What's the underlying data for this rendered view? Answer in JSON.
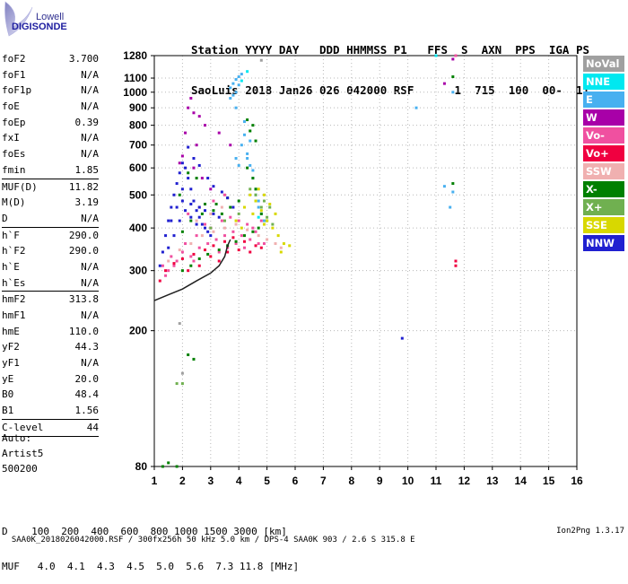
{
  "logo": {
    "line1": "Lowell",
    "line2": "DIGISONDE"
  },
  "header": {
    "labels": "Station YYYY DAY   DDD HHMMSS P1   FFS  S  AXN  PPS  IGA PS",
    "values": "SaoLuis 2018 Jan26 026 042000 RSF      1  715  100  00-  11"
  },
  "params": [
    {
      "name": "foF2",
      "value": "3.700"
    },
    {
      "name": "foF1",
      "value": "N/A"
    },
    {
      "name": "foF1p",
      "value": "N/A"
    },
    {
      "name": "foE",
      "value": "N/A"
    },
    {
      "name": "foEp",
      "value": "0.39"
    },
    {
      "name": "fxI",
      "value": "N/A"
    },
    {
      "name": "foEs",
      "value": "N/A"
    },
    {
      "name": "fmin",
      "value": "1.85"
    },
    {
      "sep": true
    },
    {
      "name": "MUF(D)",
      "value": "11.82"
    },
    {
      "name": "M(D)",
      "value": "3.19"
    },
    {
      "name": "D",
      "value": "N/A"
    },
    {
      "sep": true
    },
    {
      "name": "h`F",
      "value": "290.0"
    },
    {
      "name": "h`F2",
      "value": "290.0"
    },
    {
      "name": "h`E",
      "value": "N/A"
    },
    {
      "name": "h`Es",
      "value": "N/A"
    },
    {
      "sep": true
    },
    {
      "name": "hmF2",
      "value": "313.8"
    },
    {
      "name": "hmF1",
      "value": "N/A"
    },
    {
      "name": "hmE",
      "value": "110.0"
    },
    {
      "name": "yF2",
      "value": "44.3"
    },
    {
      "name": "yF1",
      "value": "N/A"
    },
    {
      "name": "yE",
      "value": "20.0"
    },
    {
      "name": "B0",
      "value": "48.4"
    },
    {
      "name": "B1",
      "value": "1.56"
    },
    {
      "sep": true
    },
    {
      "name": "C-level",
      "value": "44"
    },
    {
      "sep": true
    }
  ],
  "auto": {
    "line1": "Auto:",
    "line2": "Artist5",
    "line3": "500200"
  },
  "legend": [
    {
      "label": "NoVal",
      "color": "#a0a0a0"
    },
    {
      "label": "NNE",
      "color": "#00e8f0"
    },
    {
      "label": "E",
      "color": "#48b0f0"
    },
    {
      "label": "W",
      "color": "#a800a8"
    },
    {
      "label": "Vo-",
      "color": "#f050a0"
    },
    {
      "label": "Vo+",
      "color": "#f00040"
    },
    {
      "label": "SSW",
      "color": "#f0b0b0"
    },
    {
      "label": "X-",
      "color": "#008000"
    },
    {
      "label": "X+",
      "color": "#70b050"
    },
    {
      "label": "SSE",
      "color": "#d8d800"
    },
    {
      "label": "NNW",
      "color": "#2020d0"
    }
  ],
  "muf_table": {
    "d_row": "D    100  200  400  600  800 1000 1500 3000 [km]",
    "muf_row": "MUF   4.0  4.1  4.3  4.5  5.0  5.6  7.3 11.8 [MHz]"
  },
  "footer": {
    "text": "SAA0K_2018026042000.RSF / 300fx256h 50 kHz 5.0 km / DPS-4 SAA0K 903 / 2.6 S 315.8 E",
    "version": "Ion2Png 1.3.17"
  },
  "chart_data": {
    "type": "scatter",
    "xlabel": "",
    "ylabel": "",
    "x_ticks": [
      1,
      2,
      3,
      4,
      5,
      6,
      7,
      8,
      9,
      10,
      11,
      12,
      13,
      14,
      15,
      16
    ],
    "y_ticks": [
      80,
      200,
      300,
      400,
      500,
      600,
      700,
      800,
      900,
      1000,
      1100,
      1280
    ],
    "xlim": [
      1,
      16
    ],
    "ylim": [
      80,
      1280
    ],
    "y_scale": "log",
    "grid": true,
    "x_unit": "MHz",
    "y_unit": "km",
    "series": [
      {
        "color": "#a0a0a0",
        "points": [
          [
            1.9,
            210
          ],
          [
            2.0,
            150
          ],
          [
            4.8,
            1240
          ]
        ]
      },
      {
        "color": "#00e8f0",
        "points": [
          [
            4.1,
            1080
          ],
          [
            4.3,
            1150
          ],
          [
            4.6,
            480
          ],
          [
            4.7,
            430
          ],
          [
            11.0,
            1280
          ]
        ]
      },
      {
        "color": "#48b0f0",
        "points": [
          [
            3.7,
            1030
          ],
          [
            3.8,
            1060
          ],
          [
            3.9,
            1090
          ],
          [
            4.0,
            1110
          ],
          [
            4.1,
            1130
          ],
          [
            3.9,
            1000
          ],
          [
            3.8,
            980
          ],
          [
            4.0,
            1050
          ],
          [
            4.2,
            820
          ],
          [
            4.3,
            660
          ],
          [
            4.4,
            610
          ],
          [
            4.5,
            560
          ],
          [
            4.6,
            520
          ],
          [
            4.7,
            480
          ],
          [
            4.4,
            720
          ],
          [
            4.2,
            750
          ],
          [
            3.9,
            900
          ],
          [
            3.7,
            960
          ],
          [
            4.7,
            460
          ],
          [
            4.6,
            500
          ],
          [
            4.8,
            440
          ],
          [
            4.9,
            420
          ],
          [
            11.6,
            1000
          ],
          [
            11.6,
            510
          ],
          [
            11.5,
            460
          ],
          [
            11.3,
            530
          ],
          [
            10.3,
            900
          ],
          [
            4.1,
            700
          ],
          [
            4.3,
            640
          ],
          [
            4.5,
            590
          ],
          [
            4.0,
            610
          ],
          [
            3.9,
            640
          ]
        ]
      },
      {
        "color": "#a800a8",
        "points": [
          [
            2.2,
            900
          ],
          [
            2.4,
            870
          ],
          [
            2.3,
            960
          ],
          [
            2.6,
            850
          ],
          [
            2.8,
            800
          ],
          [
            3.3,
            760
          ],
          [
            3.7,
            700
          ],
          [
            2.1,
            760
          ],
          [
            2.5,
            700
          ],
          [
            2.0,
            650
          ],
          [
            1.9,
            620
          ],
          [
            11.3,
            1060
          ],
          [
            11.6,
            1250
          ],
          [
            2.4,
            600
          ],
          [
            2.7,
            560
          ],
          [
            3.0,
            520
          ]
        ]
      },
      {
        "color": "#f050a0",
        "points": [
          [
            1.3,
            310
          ],
          [
            1.5,
            300
          ],
          [
            1.8,
            320
          ],
          [
            2.0,
            340
          ],
          [
            2.3,
            330
          ],
          [
            2.6,
            350
          ],
          [
            2.9,
            360
          ],
          [
            3.2,
            370
          ],
          [
            3.5,
            380
          ],
          [
            3.8,
            390
          ],
          [
            4.1,
            380
          ],
          [
            4.4,
            370
          ],
          [
            4.7,
            360
          ],
          [
            2.1,
            360
          ],
          [
            2.5,
            380
          ],
          [
            3.0,
            400
          ],
          [
            3.4,
            420
          ],
          [
            3.7,
            430
          ],
          [
            4.0,
            420
          ],
          [
            4.3,
            410
          ],
          [
            4.6,
            390
          ],
          [
            1.6,
            330
          ],
          [
            2.8,
            410
          ],
          [
            3.6,
            350
          ],
          [
            4.2,
            350
          ],
          [
            4.9,
            360
          ],
          [
            2.2,
            440
          ],
          [
            2.6,
            460
          ],
          [
            3.1,
            480
          ],
          [
            3.5,
            500
          ],
          [
            11.7,
            1280
          ],
          [
            1.4,
            290
          ],
          [
            1.7,
            310
          ],
          [
            2.4,
            320
          ],
          [
            3.3,
            340
          ],
          [
            3.9,
            360
          ],
          [
            4.5,
            400
          ],
          [
            4.8,
            420
          ]
        ]
      },
      {
        "color": "#f00040",
        "points": [
          [
            1.4,
            300
          ],
          [
            1.7,
            315
          ],
          [
            2.0,
            325
          ],
          [
            2.4,
            335
          ],
          [
            2.8,
            345
          ],
          [
            3.1,
            355
          ],
          [
            3.5,
            365
          ],
          [
            3.8,
            375
          ],
          [
            4.2,
            365
          ],
          [
            4.6,
            355
          ],
          [
            2.2,
            300
          ],
          [
            3.0,
            330
          ],
          [
            3.6,
            340
          ],
          [
            4.0,
            345
          ],
          [
            11.7,
            310
          ],
          [
            11.7,
            320
          ],
          [
            1.2,
            280
          ],
          [
            2.6,
            310
          ],
          [
            3.3,
            320
          ],
          [
            4.4,
            340
          ],
          [
            4.8,
            350
          ]
        ]
      },
      {
        "color": "#f0b0b0",
        "points": [
          [
            1.5,
            320
          ],
          [
            1.9,
            345
          ],
          [
            2.3,
            360
          ],
          [
            2.7,
            380
          ],
          [
            3.1,
            390
          ],
          [
            3.5,
            400
          ],
          [
            3.9,
            410
          ],
          [
            4.3,
            395
          ],
          [
            4.7,
            380
          ],
          [
            5.0,
            370
          ],
          [
            5.3,
            360
          ],
          [
            5.5,
            350
          ],
          [
            2.5,
            420
          ],
          [
            3.0,
            440
          ],
          [
            3.4,
            460
          ]
        ]
      },
      {
        "color": "#008000",
        "points": [
          [
            1.3,
            80
          ],
          [
            1.5,
            82
          ],
          [
            1.8,
            80
          ],
          [
            2.2,
            170
          ],
          [
            2.4,
            165
          ],
          [
            1.9,
            500
          ],
          [
            2.2,
            580
          ],
          [
            2.5,
            560
          ],
          [
            2.8,
            470
          ],
          [
            3.1,
            450
          ],
          [
            3.4,
            440
          ],
          [
            3.7,
            460
          ],
          [
            4.0,
            480
          ],
          [
            4.3,
            600
          ],
          [
            4.5,
            560
          ],
          [
            4.6,
            520
          ],
          [
            4.8,
            440
          ],
          [
            5.0,
            420
          ],
          [
            4.4,
            770
          ],
          [
            4.5,
            800
          ],
          [
            4.3,
            830
          ],
          [
            4.6,
            720
          ],
          [
            2.0,
            300
          ],
          [
            2.3,
            310
          ],
          [
            2.6,
            325
          ],
          [
            2.9,
            335
          ],
          [
            3.3,
            345
          ],
          [
            3.6,
            355
          ],
          [
            3.9,
            365
          ],
          [
            4.2,
            380
          ],
          [
            4.5,
            390
          ],
          [
            4.7,
            400
          ],
          [
            11.6,
            1110
          ],
          [
            11.6,
            540
          ],
          [
            2.0,
            390
          ],
          [
            2.3,
            420
          ],
          [
            2.7,
            440
          ],
          [
            3.2,
            470
          ],
          [
            3.6,
            490
          ]
        ]
      },
      {
        "color": "#70b050",
        "points": [
          [
            1.8,
            140
          ],
          [
            2.0,
            140
          ],
          [
            4.4,
            520
          ],
          [
            4.6,
            500
          ],
          [
            4.8,
            460
          ],
          [
            5.0,
            430
          ],
          [
            5.2,
            410
          ],
          [
            4.9,
            480
          ],
          [
            5.1,
            460
          ],
          [
            3.0,
            400
          ],
          [
            3.5,
            420
          ],
          [
            4.0,
            440
          ]
        ]
      },
      {
        "color": "#d8d800",
        "points": [
          [
            4.4,
            500
          ],
          [
            4.6,
            480
          ],
          [
            4.8,
            450
          ],
          [
            5.0,
            420
          ],
          [
            5.2,
            400
          ],
          [
            5.4,
            380
          ],
          [
            5.6,
            360
          ],
          [
            5.8,
            355
          ],
          [
            4.7,
            520
          ],
          [
            4.9,
            500
          ],
          [
            5.1,
            470
          ],
          [
            5.3,
            440
          ],
          [
            4.2,
            460
          ],
          [
            4.5,
            440
          ],
          [
            4.9,
            410
          ],
          [
            5.5,
            340
          ],
          [
            3.9,
            420
          ],
          [
            4.1,
            400
          ]
        ]
      },
      {
        "color": "#2020d0",
        "points": [
          [
            1.2,
            310
          ],
          [
            1.3,
            340
          ],
          [
            1.4,
            380
          ],
          [
            1.5,
            420
          ],
          [
            1.6,
            460
          ],
          [
            1.7,
            500
          ],
          [
            1.8,
            540
          ],
          [
            1.9,
            580
          ],
          [
            2.0,
            620
          ],
          [
            2.1,
            600
          ],
          [
            2.2,
            560
          ],
          [
            2.3,
            520
          ],
          [
            2.4,
            480
          ],
          [
            2.5,
            450
          ],
          [
            2.6,
            430
          ],
          [
            2.7,
            410
          ],
          [
            2.8,
            400
          ],
          [
            2.9,
            390
          ],
          [
            3.0,
            380
          ],
          [
            1.5,
            350
          ],
          [
            1.7,
            380
          ],
          [
            1.9,
            420
          ],
          [
            2.1,
            450
          ],
          [
            2.3,
            430
          ],
          [
            2.5,
            410
          ],
          [
            2.0,
            520
          ],
          [
            2.2,
            690
          ],
          [
            2.4,
            640
          ],
          [
            2.6,
            610
          ],
          [
            2.9,
            560
          ],
          [
            3.1,
            530
          ],
          [
            3.4,
            510
          ],
          [
            3.6,
            490
          ],
          [
            3.8,
            460
          ],
          [
            9.8,
            190
          ],
          [
            1.6,
            420
          ],
          [
            1.8,
            460
          ],
          [
            2.0,
            480
          ],
          [
            2.3,
            470
          ],
          [
            2.6,
            460
          ],
          [
            2.8,
            450
          ],
          [
            3.1,
            440
          ],
          [
            3.3,
            430
          ]
        ]
      }
    ],
    "trace_line": {
      "color": "#202020",
      "points": [
        [
          1.0,
          245
        ],
        [
          1.5,
          255
        ],
        [
          2.0,
          265
        ],
        [
          2.5,
          280
        ],
        [
          3.0,
          295
        ],
        [
          3.3,
          310
        ],
        [
          3.5,
          330
        ],
        [
          3.6,
          355
        ],
        [
          3.7,
          370
        ]
      ]
    }
  }
}
